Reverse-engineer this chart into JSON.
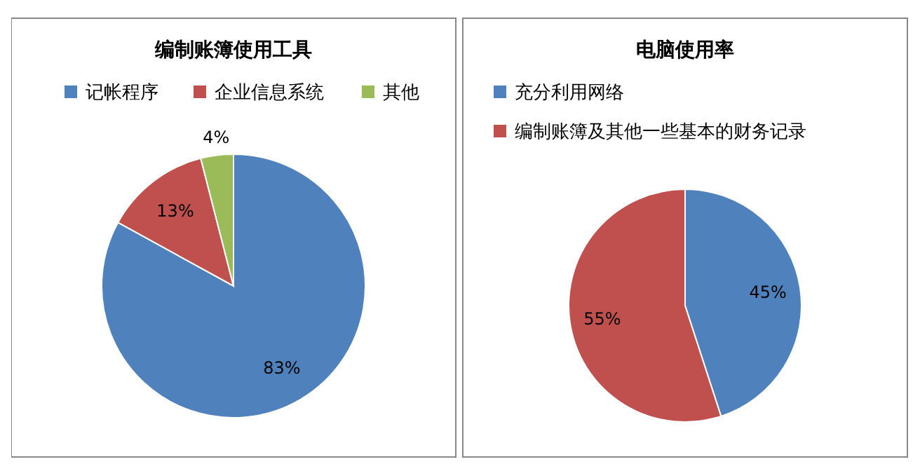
{
  "chart_data": [
    {
      "type": "pie",
      "title": "编制账簿使用工具",
      "categories": [
        "记帐程序",
        "企业信息系统",
        "其他"
      ],
      "values": [
        83,
        13,
        4
      ],
      "colors": [
        "#4f81bd",
        "#c0504d",
        "#9bbb59"
      ],
      "value_labels": [
        "83%",
        "13%",
        "4%"
      ],
      "legend": "top"
    },
    {
      "type": "pie",
      "title": "电脑使用率",
      "categories": [
        "充分利用网络",
        "编制账簿及其他一些基本的财务记录"
      ],
      "values": [
        45,
        55
      ],
      "colors": [
        "#4f81bd",
        "#c0504d"
      ],
      "value_labels": [
        "45%",
        "55%"
      ],
      "legend": "top"
    }
  ]
}
